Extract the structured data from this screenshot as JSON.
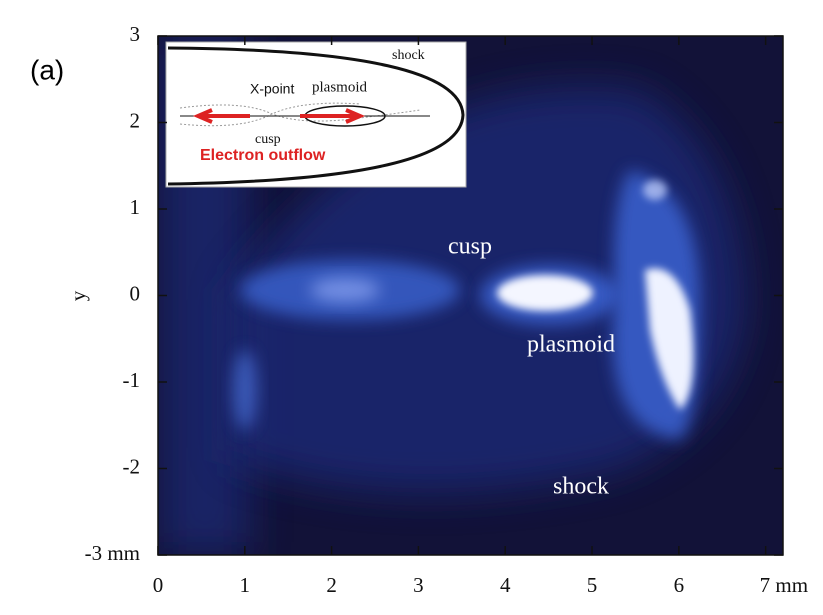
{
  "chart_data": {
    "type": "image",
    "panel_label": "(a)",
    "ylabel": "y",
    "xlim": [
      0,
      7.2
    ],
    "ylim": [
      -3,
      3
    ],
    "xticks": [
      0,
      1,
      2,
      3,
      4,
      5,
      6,
      {
        "value": 7,
        "label": "7 mm"
      }
    ],
    "yticks": [
      {
        "value": -3,
        "label": "-3 mm"
      },
      -2,
      -1,
      0,
      1,
      2,
      3
    ],
    "annotations": [
      "cusp",
      "plasmoid",
      "shock"
    ],
    "inset": {
      "labels": [
        "shock",
        "X-point",
        "plasmoid",
        "cusp",
        "Electron outflow"
      ]
    }
  }
}
